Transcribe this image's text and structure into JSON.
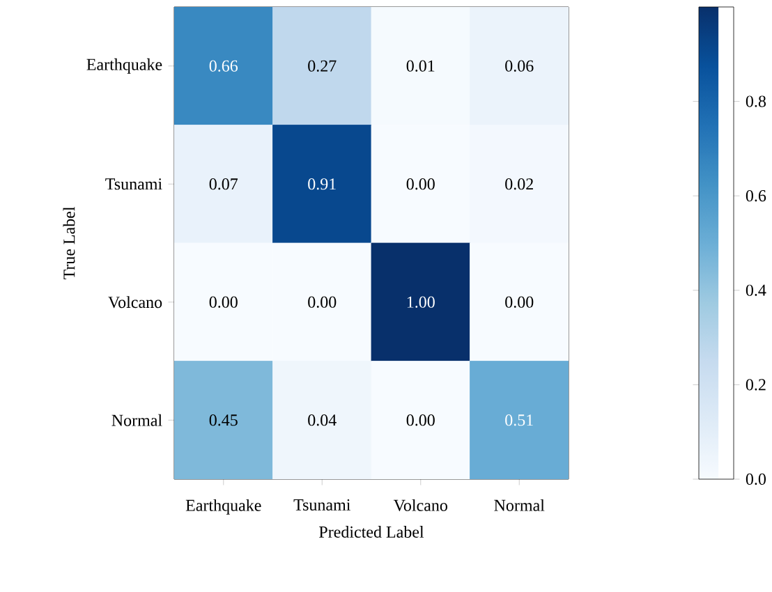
{
  "chart_data": {
    "type": "heatmap",
    "xlabel": "Predicted Label",
    "ylabel": "True Label",
    "categories": [
      "Earthquake",
      "Tsunami",
      "Volcano",
      "Normal"
    ],
    "y_categories": [
      "Earthquake",
      "Tsunami",
      "Volcano",
      "Normal"
    ],
    "cells": [
      [
        0.66,
        0.27,
        0.01,
        0.06
      ],
      [
        0.07,
        0.91,
        0.0,
        0.02
      ],
      [
        0.0,
        0.0,
        1.0,
        0.0
      ],
      [
        0.45,
        0.04,
        0.0,
        0.51
      ]
    ],
    "cell_labels": [
      [
        "0.66",
        "0.27",
        "0.01",
        "0.06"
      ],
      [
        "0.07",
        "0.91",
        "0.00",
        "0.02"
      ],
      [
        "0.00",
        "0.00",
        "1.00",
        "0.00"
      ],
      [
        "0.45",
        "0.04",
        "0.00",
        "0.51"
      ]
    ],
    "clim": [
      0,
      1
    ],
    "cticks": [
      {
        "value": 0,
        "label": "0.0"
      },
      0.2,
      0.4,
      0.6,
      0.8
    ]
  }
}
